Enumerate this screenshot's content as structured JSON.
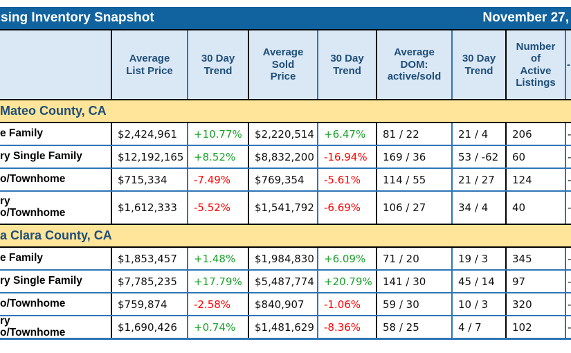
{
  "title_bar": {
    "title": "sing Inventory Snapshot",
    "date": "November 27,"
  },
  "colors": {
    "title_bar_blue": "#10639F",
    "header_bg": "#DAE8F6",
    "header_text_navy": "#1F4E79",
    "section_band_yellow": "#FFE599",
    "positive_green": "#1AA12B",
    "negative_red": "#FF0000",
    "row_divider_blue": "#2E75B6",
    "column_divider_black": "#000000"
  },
  "table": {
    "columns": [
      "",
      "Average\nList Price",
      "30 Day\nTrend",
      "Average\nSold\nPrice",
      "30 Day\nTrend",
      "Average\nDOM:\nactive/sold",
      "30 Day\nTrend",
      "Number\nof\nActive\nListings",
      "-"
    ],
    "sections": [
      {
        "label": "Mateo County, CA",
        "rows": [
          {
            "label": "e Family",
            "cells": [
              {
                "t": "$2,424,961"
              },
              {
                "t": "+10.77%",
                "c": "green"
              },
              {
                "t": "$2,220,514"
              },
              {
                "t": "+6.47%",
                "c": "green"
              },
              {
                "t": "81 / 22"
              },
              {
                "t": "21 / 4"
              },
              {
                "t": "206"
              },
              {
                "t": "-"
              }
            ]
          },
          {
            "label": "ry Single Family",
            "cells": [
              {
                "t": "$12,192,165"
              },
              {
                "t": "+8.52%",
                "c": "green"
              },
              {
                "t": "$8,832,200"
              },
              {
                "t": "-16.94%",
                "c": "red"
              },
              {
                "t": "169 / 36"
              },
              {
                "t": "53 / -62"
              },
              {
                "t": "60"
              },
              {
                "t": "-"
              }
            ]
          },
          {
            "label": "o/Townhome",
            "cells": [
              {
                "t": "$715,334"
              },
              {
                "t": "-7.49%",
                "c": "red"
              },
              {
                "t": "$769,354"
              },
              {
                "t": "-5.61%",
                "c": "red"
              },
              {
                "t": "114 / 55"
              },
              {
                "t": "21 / 27"
              },
              {
                "t": "124"
              },
              {
                "t": "-"
              }
            ]
          },
          {
            "label": "ry\no/Townhome",
            "tall": true,
            "cells": [
              {
                "t": "$1,612,333"
              },
              {
                "t": "-5.52%",
                "c": "red"
              },
              {
                "t": "$1,541,792"
              },
              {
                "t": "-6.69%",
                "c": "red"
              },
              {
                "t": "106 / 27"
              },
              {
                "t": "34 / 4"
              },
              {
                "t": "40"
              },
              {
                "t": "-"
              }
            ]
          }
        ]
      },
      {
        "label": "a Clara County, CA",
        "rows": [
          {
            "label": "e Family",
            "cells": [
              {
                "t": "$1,853,457"
              },
              {
                "t": "+1.48%",
                "c": "green"
              },
              {
                "t": "$1,984,830"
              },
              {
                "t": "+6.09%",
                "c": "green"
              },
              {
                "t": "71 / 20"
              },
              {
                "t": "19 / 3"
              },
              {
                "t": "345"
              },
              {
                "t": "-"
              }
            ]
          },
          {
            "label": "ry Single Family",
            "cells": [
              {
                "t": "$7,785,235"
              },
              {
                "t": "+17.79%",
                "c": "green"
              },
              {
                "t": "$5,487,774"
              },
              {
                "t": "+20.79%",
                "c": "green"
              },
              {
                "t": "141 / 30"
              },
              {
                "t": "45 / 14"
              },
              {
                "t": "97"
              },
              {
                "t": "-"
              }
            ]
          },
          {
            "label": "o/Townhome",
            "cells": [
              {
                "t": "$759,874"
              },
              {
                "t": "-2.58%",
                "c": "red"
              },
              {
                "t": "$840,907"
              },
              {
                "t": "-1.06%",
                "c": "red"
              },
              {
                "t": "59 / 30"
              },
              {
                "t": "10 / 3"
              },
              {
                "t": "320"
              },
              {
                "t": "-"
              }
            ]
          },
          {
            "label": "ry\no/Townhome",
            "tall": true,
            "cells": [
              {
                "t": "$1,690,426"
              },
              {
                "t": "+0.74%",
                "c": "green"
              },
              {
                "t": "$1,481,629"
              },
              {
                "t": "-8.36%",
                "c": "red"
              },
              {
                "t": "58 / 25"
              },
              {
                "t": "4 / 7"
              },
              {
                "t": "102"
              },
              {
                "t": "-"
              }
            ]
          }
        ]
      }
    ]
  }
}
